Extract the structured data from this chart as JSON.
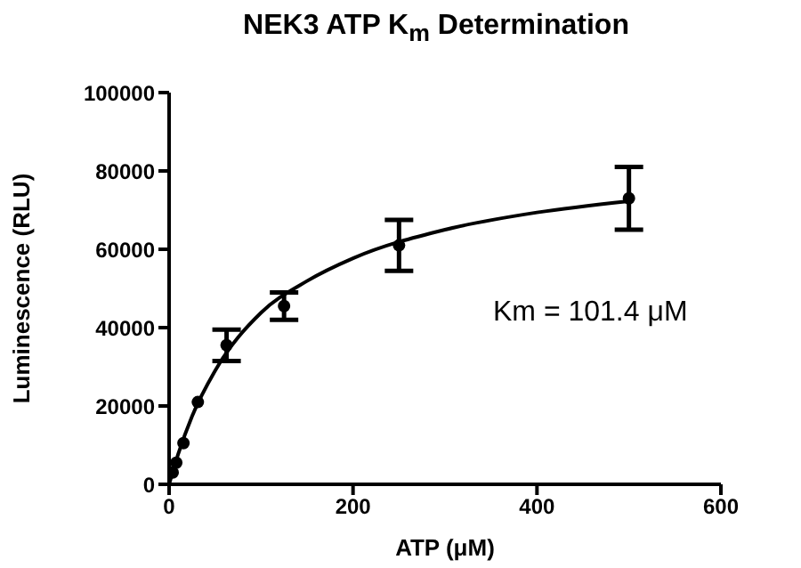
{
  "chart_data": {
    "type": "scatter",
    "title": "NEK3 ATP K$_{m}$ Determination",
    "xlabel": "ATP (μM)",
    "ylabel": "Luminescence (RLU)",
    "xlim": [
      0,
      600
    ],
    "xticks": [
      0,
      200,
      400,
      600
    ],
    "ylim": [
      0,
      100000
    ],
    "yticks": [
      0,
      20000,
      40000,
      60000,
      80000,
      100000
    ],
    "marker": "circle",
    "annotations": [
      "Km = 101.4 μM"
    ],
    "series": [
      {
        "color": "#000000",
        "x": [
          3.9,
          7.8,
          15.6,
          31.25,
          62.5,
          125,
          250,
          500
        ],
        "values": [
          3000,
          5500,
          10500,
          21000,
          35500,
          45500,
          61000,
          73000
        ],
        "errors": [
          null,
          null,
          null,
          null,
          4000,
          3500,
          6500,
          8000
        ]
      },
      {
        "type": "line",
        "color": "#000000",
        "marker": "none",
        "x": [
          0,
          10,
          25,
          50,
          100,
          150,
          200,
          300,
          400,
          500
        ],
        "values": [
          0,
          7800,
          17400,
          29000,
          43800,
          51900,
          57700,
          65000,
          69400,
          72300
        ]
      }
    ]
  }
}
